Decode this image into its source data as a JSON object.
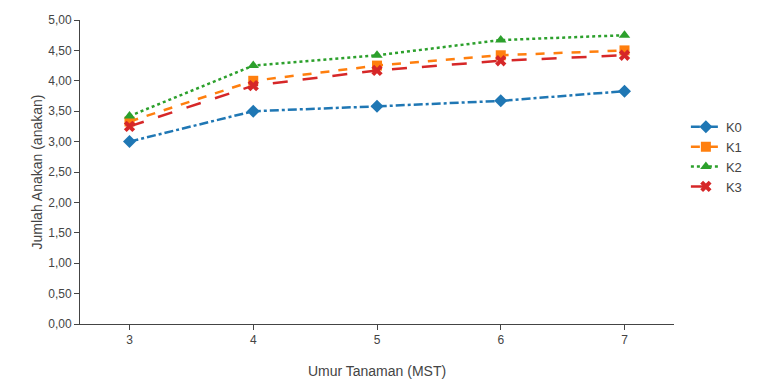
{
  "chart_data": {
    "type": "line",
    "xlabel": "Umur Tanaman (MST)",
    "ylabel": "Jumlah Anakan (anakan)",
    "x": [
      3,
      4,
      5,
      6,
      7
    ],
    "series": [
      {
        "name": "K0",
        "values": [
          3.0,
          3.5,
          3.58,
          3.67,
          3.83
        ],
        "marker": "diamond",
        "line_style": "dashdot"
      },
      {
        "name": "K1",
        "values": [
          3.33,
          4.0,
          4.25,
          4.42,
          4.5
        ],
        "marker": "square",
        "line_style": "dash"
      },
      {
        "name": "K2",
        "values": [
          3.42,
          4.25,
          4.42,
          4.67,
          4.75
        ],
        "marker": "triangle-up",
        "line_style": "dot"
      },
      {
        "name": "K3",
        "values": [
          3.25,
          3.92,
          4.17,
          4.33,
          4.42
        ],
        "marker": "x",
        "line_style": "longdash"
      }
    ],
    "xlim": [
      2.6,
      7.4
    ],
    "xticks": [
      3,
      4,
      5,
      6,
      7
    ],
    "ylim": [
      0.0,
      5.0
    ],
    "yticks": [
      {
        "value": 0.0,
        "label": "0,00"
      },
      {
        "value": 0.5,
        "label": "0,50"
      },
      {
        "value": 1.0,
        "label": "1,00"
      },
      {
        "value": 1.5,
        "label": "1,50"
      },
      {
        "value": 2.0,
        "label": "2,00"
      },
      {
        "value": 2.5,
        "label": "2,50"
      },
      {
        "value": 3.0,
        "label": "3,00"
      },
      {
        "value": 3.5,
        "label": "3,50"
      },
      {
        "value": 4.0,
        "label": "4,00"
      },
      {
        "value": 4.5,
        "label": "4,50"
      },
      {
        "value": 5.0,
        "label": "5,00"
      }
    ],
    "grid": false,
    "legend": "right"
  }
}
